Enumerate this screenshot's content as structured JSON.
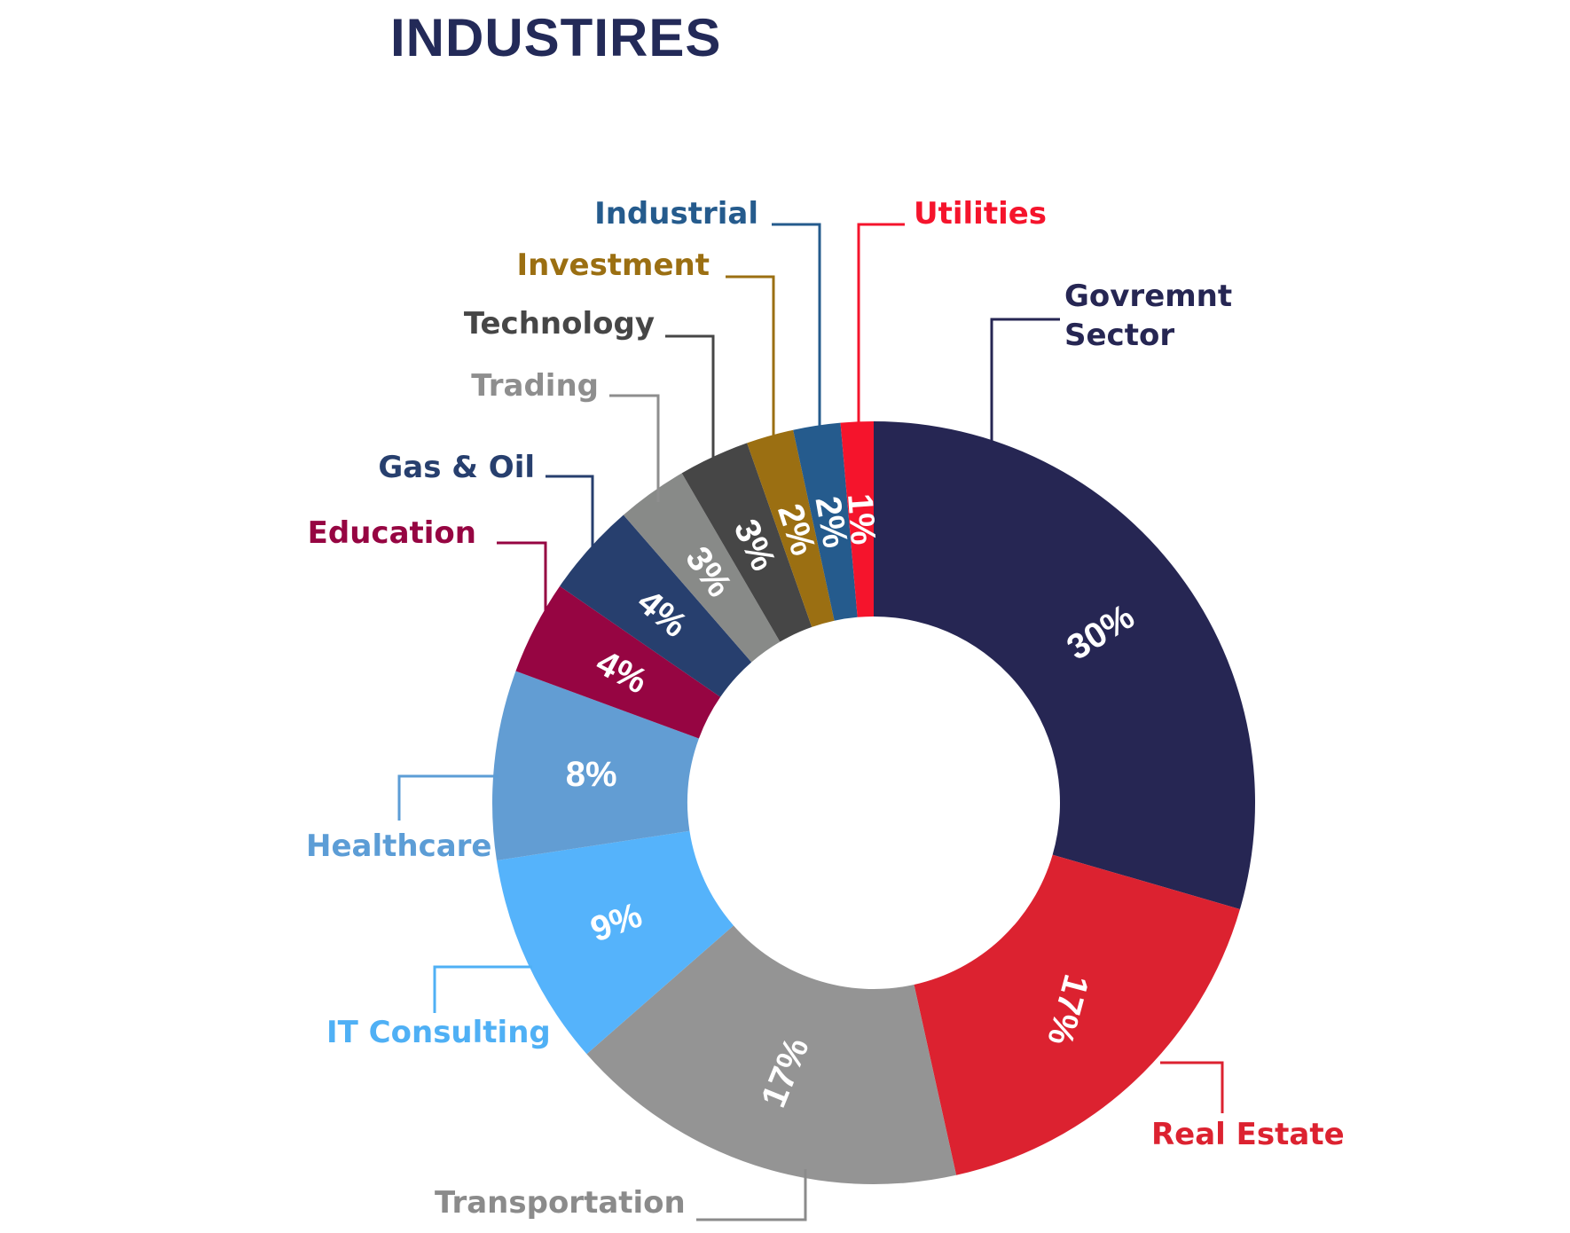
{
  "page": {
    "title": "INDUSTIRES"
  },
  "chart_data": {
    "type": "pie",
    "title": "INDUSTIRES",
    "donut": true,
    "slices": [
      {
        "label": "Govremnt Sector",
        "value": 30,
        "display": "30%",
        "color": "#262653"
      },
      {
        "label": "Real Estate",
        "value": 17,
        "display": "17%",
        "color": "#dc2230"
      },
      {
        "label": "Transportation",
        "value": 17,
        "display": "17%",
        "color": "#949494"
      },
      {
        "label": "IT Consulting",
        "value": 9,
        "display": "9%",
        "color": "#55b3fb"
      },
      {
        "label": "Healthcare",
        "value": 8,
        "display": "8%",
        "color": "#629dd3"
      },
      {
        "label": "Education",
        "value": 4,
        "display": "4%",
        "color": "#960542"
      },
      {
        "label": "Gas & Oil",
        "value": 4,
        "display": "4%",
        "color": "#273f6e"
      },
      {
        "label": "Trading",
        "value": 3,
        "display": "3%",
        "color": "#888a88"
      },
      {
        "label": "Technology",
        "value": 3,
        "display": "3%",
        "color": "#464646"
      },
      {
        "label": "Investment",
        "value": 2,
        "display": "2%",
        "color": "#9b6f12"
      },
      {
        "label": "Industrial",
        "value": 2,
        "display": "2%",
        "color": "#255b8d"
      },
      {
        "label": "Utilities",
        "value": 1,
        "display": "1%",
        "color": "#f5142c"
      }
    ],
    "callout_colors": {
      "Govremnt Sector": "#262653",
      "Real Estate": "#dc2230",
      "Transportation": "#8b8b8b",
      "IT Consulting": "#4fb0f5",
      "Healthcare": "#5c9dd6",
      "Education": "#960542",
      "Gas & Oil": "#273f6e",
      "Trading": "#8e8e8e",
      "Technology": "#464646",
      "Investment": "#9b6f12",
      "Industrial": "#255b8d",
      "Utilities": "#f5142c"
    }
  }
}
